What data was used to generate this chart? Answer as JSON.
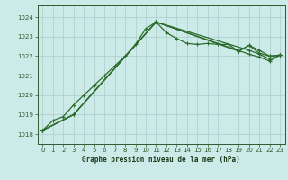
{
  "title": "Graphe pression niveau de la mer (hPa)",
  "bg_color": "#cceae7",
  "grid_color": "#aacccc",
  "line_color": "#2d6b2d",
  "xlim": [
    -0.5,
    23.5
  ],
  "ylim": [
    1017.5,
    1024.6
  ],
  "yticks": [
    1018,
    1019,
    1020,
    1021,
    1022,
    1023,
    1024
  ],
  "xticks": [
    0,
    1,
    2,
    3,
    4,
    5,
    6,
    7,
    8,
    9,
    10,
    11,
    12,
    13,
    14,
    15,
    16,
    17,
    18,
    19,
    20,
    21,
    22,
    23
  ],
  "line1_x": [
    0,
    1,
    2,
    3,
    4,
    5,
    6,
    7,
    8,
    9,
    10,
    11,
    12,
    13,
    14,
    15,
    16,
    17,
    18,
    19,
    20,
    21,
    22,
    23
  ],
  "line1_y": [
    1018.2,
    1018.7,
    1018.9,
    1019.5,
    1020.0,
    1020.5,
    1021.0,
    1021.5,
    1022.0,
    1022.6,
    1023.4,
    1023.75,
    1023.2,
    1022.9,
    1022.65,
    1022.6,
    1022.65,
    1022.6,
    1022.6,
    1022.25,
    1022.55,
    1022.15,
    1022.0,
    1022.05
  ],
  "line2_x": [
    0,
    3,
    11,
    19,
    20,
    21,
    22,
    23
  ],
  "line2_y": [
    1018.2,
    1019.0,
    1023.75,
    1022.25,
    1022.55,
    1022.3,
    1022.0,
    1022.05
  ],
  "line3_x": [
    0,
    3,
    11,
    20,
    21,
    22,
    23
  ],
  "line3_y": [
    1018.2,
    1019.0,
    1023.75,
    1022.3,
    1022.1,
    1021.85,
    1022.05
  ],
  "line4_x": [
    0,
    3,
    11,
    20,
    21,
    22,
    23
  ],
  "line4_y": [
    1018.2,
    1019.0,
    1023.75,
    1022.1,
    1021.95,
    1021.75,
    1022.05
  ]
}
